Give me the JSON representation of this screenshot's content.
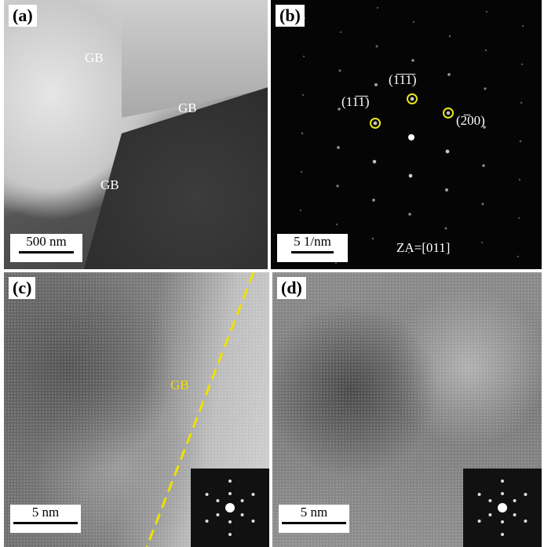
{
  "panels": {
    "a": {
      "label": "(a)",
      "scale": "500 nm",
      "gb_labels": [
        "GB",
        "GB",
        "GB"
      ]
    },
    "b": {
      "label": "(b)",
      "scale": "5 1/nm",
      "zone_axis": "ZA=[011]",
      "spots": [
        "(11̅1̅)",
        "(1̅1̅1̅)",
        "(2̅00)"
      ],
      "highlight_color": "#e8e81a"
    },
    "c": {
      "label": "(c)",
      "scale": "5 nm",
      "gb_label": "GB",
      "gb_line_color": "#f0e000"
    },
    "d": {
      "label": "(d)",
      "scale": "5 nm"
    }
  }
}
